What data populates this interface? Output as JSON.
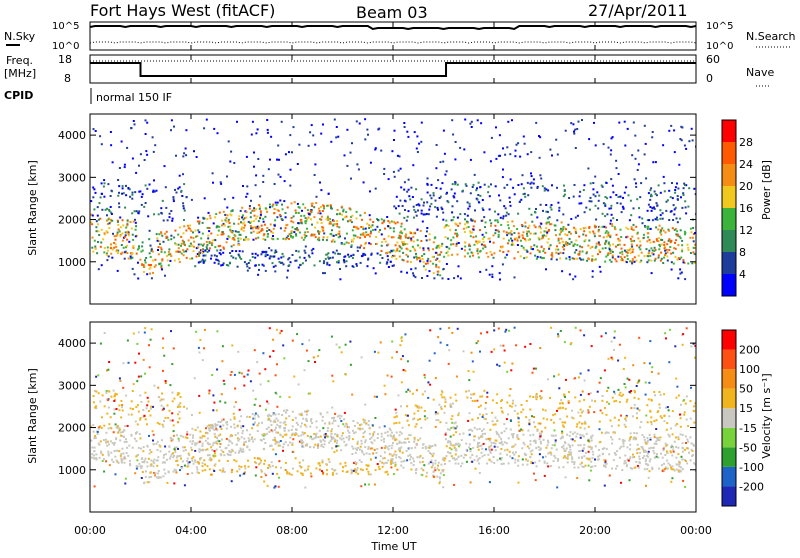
{
  "header": {
    "station": "Fort Hays West (fitACF)",
    "beam": "Beam 03",
    "date": "27/Apr/2011"
  },
  "top_panels": {
    "nsky_label": "N.Sky",
    "nsky_ticks": [
      "10^5",
      "10^0"
    ],
    "nsearch_label": "N.Search",
    "nsearch_ticks": [
      "10^5",
      "10^0"
    ],
    "freq_label_1": "Freq.",
    "freq_label_2": "[MHz]",
    "freq_ticks": [
      "18",
      "8"
    ],
    "nave_label": "Nave",
    "nave_ticks": [
      "60",
      "0"
    ],
    "cpid_label": "CPID",
    "cpid_value": "normal 150 IF"
  },
  "chart_data": [
    {
      "type": "heatmap",
      "title": "",
      "ylabel": "Slant Range [km]",
      "xlabel": "",
      "ylim": [
        0,
        4500
      ],
      "y_ticks": [
        "1000",
        "2000",
        "3000",
        "4000"
      ],
      "x_ticks": [
        "00:00",
        "04:00",
        "08:00",
        "12:00",
        "16:00",
        "20:00",
        "00:00"
      ],
      "colorbar_label": "Power [dB]",
      "colorbar_ticks": [
        "4",
        "8",
        "12",
        "16",
        "20",
        "24",
        "28"
      ],
      "colors": [
        "#0000ff",
        "#1e3c9c",
        "#2e8b57",
        "#3cb43c",
        "#f0c81e",
        "#f58c14",
        "#ff5a00",
        "#ff0000"
      ]
    },
    {
      "type": "heatmap",
      "title": "",
      "ylabel": "Slant Range [km]",
      "xlabel": "Time UT",
      "ylim": [
        0,
        4500
      ],
      "y_ticks": [
        "1000",
        "2000",
        "3000",
        "4000"
      ],
      "x_ticks": [
        "00:00",
        "04:00",
        "08:00",
        "12:00",
        "16:00",
        "20:00",
        "00:00"
      ],
      "colorbar_label": "Velocity [m s⁻¹]",
      "colorbar_ticks": [
        "200",
        "100",
        "50",
        "15",
        "-15",
        "-50",
        "-100",
        "-200"
      ],
      "colors": [
        "#1e28b4",
        "#1e64c8",
        "#2ea02e",
        "#78d23c",
        "#c8c8c0",
        "#f0b41e",
        "#f58c14",
        "#ff5014",
        "#ff0000"
      ]
    }
  ]
}
